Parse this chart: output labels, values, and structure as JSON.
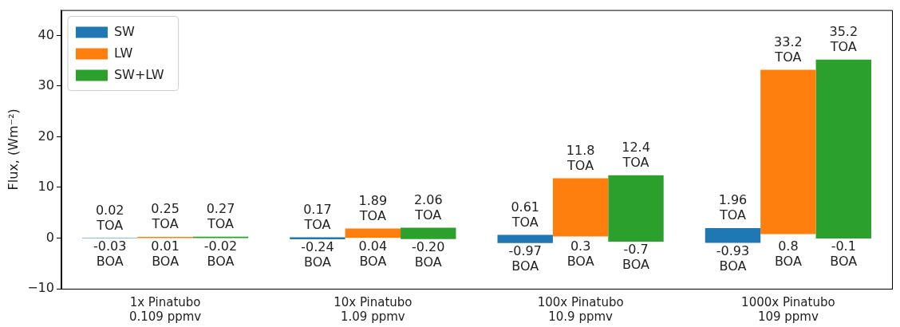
{
  "chart_data": {
    "type": "bar",
    "ylabel": "Flux, (Wm⁻²)",
    "categories": [
      "1x Pinatubo\n0.109 ppmv",
      "10x Pinatubo\n1.09 ppmv",
      "100x Pinatubo\n10.9 ppmv",
      "1000x Pinatubo\n109 ppmv"
    ],
    "series": [
      {
        "name": "SW",
        "color": "#1f77b4",
        "base": [
          -0.03,
          -0.24,
          -0.97,
          -0.93
        ],
        "values": [
          0.05,
          0.41,
          1.58,
          2.89
        ],
        "value_labels": [
          "0.02\nTOA",
          "0.17\nTOA",
          "0.61\nTOA",
          "1.96\nTOA"
        ]
      },
      {
        "name": "LW",
        "color": "#ff7f0e",
        "base": [
          0.01,
          0.04,
          0.3,
          0.8
        ],
        "values": [
          0.24,
          1.85,
          11.5,
          32.4
        ],
        "value_labels": [
          "0.25\nTOA",
          "1.89\nTOA",
          "11.8\nTOA",
          "33.2\nTOA"
        ]
      },
      {
        "name": "SW+LW",
        "color": "#2ca02c",
        "base": [
          -0.02,
          -0.2,
          -0.7,
          -0.1
        ],
        "values": [
          0.29,
          2.26,
          13.1,
          35.3
        ],
        "value_labels": [
          "0.27\nTOA",
          "2.06\nTOA",
          "12.4\nTOA",
          "35.2\nTOA"
        ]
      }
    ],
    "annotations": [
      "-0.03\nBOA",
      "0.01\nBOA",
      "-0.02\nBOA",
      "-0.24\nBOA",
      "0.04\nBOA",
      "-0.20\nBOA",
      "-0.97\nBOA",
      "0.3\nBOA",
      "-0.7\nBOA",
      "-0.93\nBOA",
      "0.8\nBOA",
      "-0.1\nBOA"
    ],
    "ylim": [
      -10,
      45
    ],
    "yticks": [
      {
        "value": -10,
        "label": "−10"
      },
      0,
      10,
      20,
      30,
      40
    ],
    "grid": false,
    "legend": "top left"
  }
}
